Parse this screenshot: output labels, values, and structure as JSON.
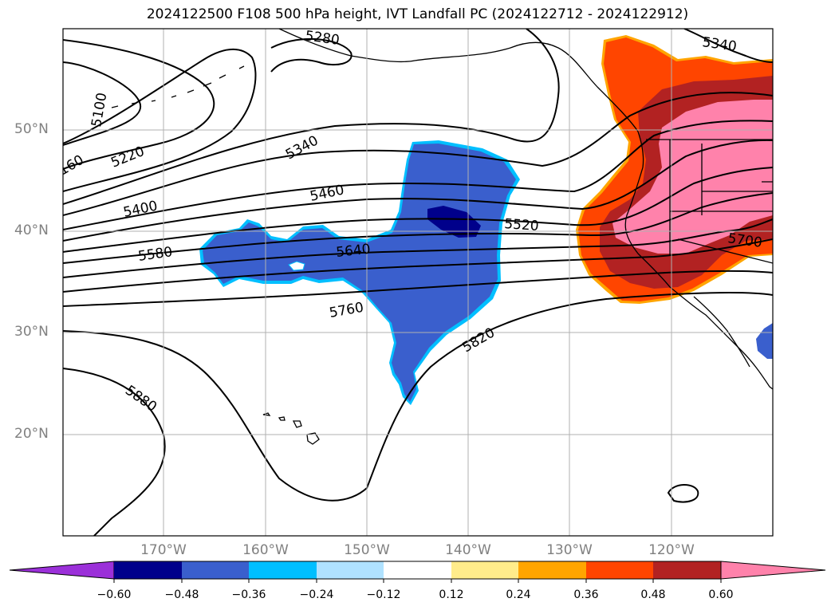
{
  "title": "2024122500 F108 500 hPa height, IVT Landfall PC (2024122712 - 2024122912)",
  "lat_labels": [
    "50°N",
    "40°N",
    "30°N",
    "20°N"
  ],
  "lon_labels": [
    "170°W",
    "160°W",
    "150°W",
    "140°W",
    "130°W",
    "120°W"
  ],
  "contour_labels": [
    "5280",
    "5340",
    "5100",
    "160",
    "5220",
    "5340",
    "5460",
    "5400",
    "5520",
    "5580",
    "5640",
    "5700",
    "5760",
    "5820",
    "5880"
  ],
  "colorbar": {
    "ticks": [
      "−0.60",
      "−0.48",
      "−0.36",
      "−0.24",
      "−0.12",
      "0.12",
      "0.24",
      "0.36",
      "0.48",
      "0.60"
    ],
    "colors": [
      "#9b30d9",
      "#00008b",
      "#3a5fcd",
      "#00bfff",
      "#b0e2ff",
      "#ffffff",
      "#ffec8b",
      "#ffa500",
      "#ff4500",
      "#b22222",
      "#ff82ab"
    ]
  },
  "colors": {
    "negative_fill": "#3a5fcd",
    "negative_core": "#00008b",
    "negative_edge": "#00bfff",
    "positive_outer": "#ff4500",
    "positive_mid": "#b22222",
    "positive_core": "#ff82ab",
    "positive_edge": "#ffa500"
  }
}
